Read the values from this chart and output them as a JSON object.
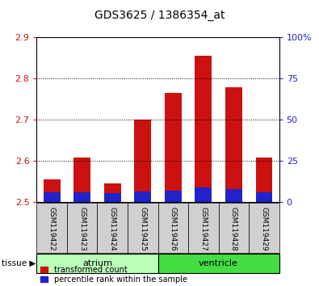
{
  "title": "GDS3625 / 1386354_at",
  "samples": [
    "GSM119422",
    "GSM119423",
    "GSM119424",
    "GSM119425",
    "GSM119426",
    "GSM119427",
    "GSM119428",
    "GSM119429"
  ],
  "red_values": [
    2.555,
    2.607,
    2.545,
    2.7,
    2.765,
    2.855,
    2.778,
    2.607
  ],
  "blue_values": [
    2.522,
    2.522,
    2.52,
    2.525,
    2.526,
    2.535,
    2.53,
    2.522
  ],
  "base": 2.5,
  "ylim": [
    2.5,
    2.9
  ],
  "yticks_left": [
    2.5,
    2.6,
    2.7,
    2.8,
    2.9
  ],
  "yticks_right": [
    0,
    25,
    50,
    75,
    100
  ],
  "red_color": "#cc1111",
  "blue_color": "#2222cc",
  "bar_width": 0.55,
  "groups": [
    {
      "label": "atrium",
      "indices": [
        0,
        1,
        2,
        3
      ],
      "color": "#bbffbb",
      "edge_color": "#000000"
    },
    {
      "label": "ventricle",
      "indices": [
        4,
        5,
        6,
        7
      ],
      "color": "#44dd44",
      "edge_color": "#000000"
    }
  ],
  "tissue_label": "tissue",
  "legend_red": "transformed count",
  "legend_blue": "percentile rank within the sample",
  "left_tick_color": "#cc1111",
  "right_tick_color": "#2222cc"
}
